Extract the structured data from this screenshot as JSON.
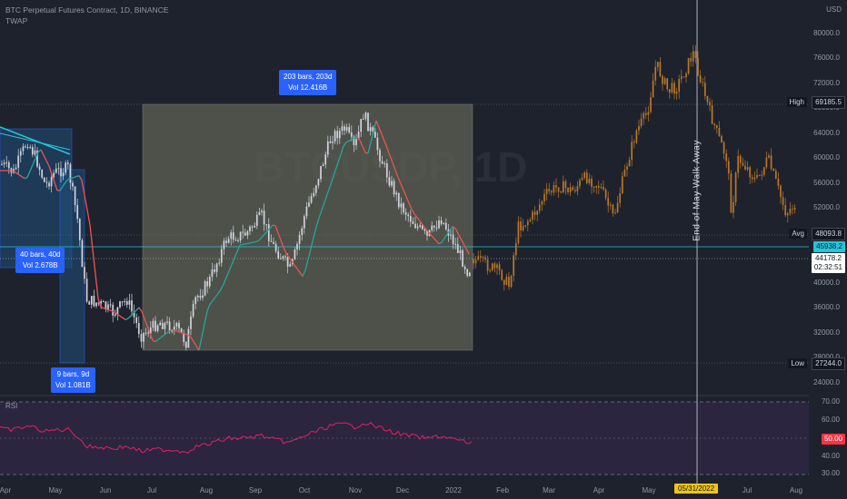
{
  "header": {
    "title": "BTC Perpetual Futures Contract, 1D, BINANCE",
    "indicator": "TWAP",
    "currency": "USD"
  },
  "watermark": "BTCUSDP, 1D",
  "boxes": {
    "big": {
      "bars": "203 bars, 203d",
      "vol": "Vol 12.416B"
    },
    "left": {
      "bars": "40 bars, 40d",
      "vol": "Vol 2.678B"
    },
    "small": {
      "bars": "9 bars, 9d",
      "vol": "Vol 1.081B"
    }
  },
  "annotation": "End of May Walk Away",
  "y_axis": [
    "80000.0",
    "76000.0",
    "72000.0",
    "68000.0",
    "64000.0",
    "60000.0",
    "56000.0",
    "52000.0",
    "48000.0",
    "44000.0",
    "40000.0",
    "36000.0",
    "32000.0",
    "28000.0",
    "24000.0"
  ],
  "x_axis": [
    "Apr",
    "May",
    "Jun",
    "Jul",
    "Aug",
    "Sep",
    "Oct",
    "Nov",
    "Dec",
    "2022",
    "Feb",
    "Mar",
    "Apr",
    "May",
    "Jul",
    "Aug"
  ],
  "price_tags": {
    "high_label": "High",
    "high": "69185.5",
    "avg_label": "Avg",
    "avg": "48093.8",
    "cyan": "45938.2",
    "current": "44178.2",
    "countdown": "02:32:51",
    "low_label": "Low",
    "low": "27244.0"
  },
  "rsi": {
    "label": "RSI",
    "ticks": [
      "70.00",
      "60.00",
      "50.00",
      "40.00",
      "30.00"
    ],
    "current": "50.00"
  },
  "date_badge": "05/31/2022",
  "colors": {
    "bg": "#1e222d",
    "candle": "#d1d4dc",
    "projection": "#b8772a",
    "twap_up": "#26a69a",
    "twap_down": "#ef5350",
    "rsi": "#e91e63",
    "box_fill": "#5d6154",
    "blue": "#2962ff"
  },
  "chart_data": {
    "type": "candlestick",
    "series": [
      {
        "name": "TWAP",
        "color_up": "#26a69a",
        "color_down": "#ef5350"
      }
    ],
    "ylim": [
      24000,
      82000
    ],
    "annotations": [
      "203 bars, 203d",
      "40 bars, 40d",
      "9 bars, 9d",
      "End of May Walk Away"
    ]
  }
}
